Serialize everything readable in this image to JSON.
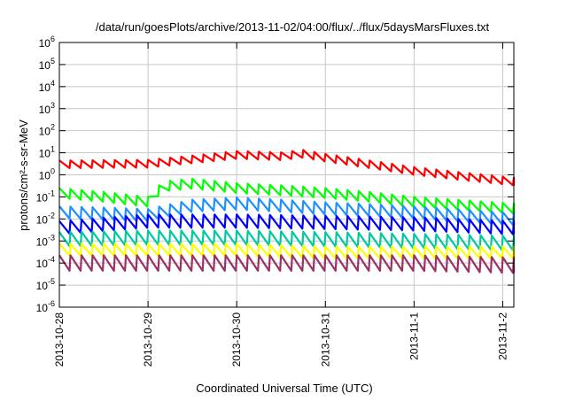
{
  "chart_data": {
    "type": "line",
    "title": "/data/run/goesPlots/archive/2013-11-02/04:00/flux/../flux/5daysMarsFluxes.txt",
    "xlabel": "Coordinated Universal Time (UTC)",
    "ylabel": "protons/cm²-s-sr-MeV",
    "y_scale": "log",
    "ylim_exp": [
      -6,
      6
    ],
    "y_tick_base": "10",
    "y_tick_exponents": [
      "-6",
      "-5",
      "-4",
      "-3",
      "-2",
      "-1",
      "0",
      "1",
      "2",
      "3",
      "4",
      "5",
      "6"
    ],
    "xlim": [
      "2013-10-28 00:00",
      "2013-11-02 03:00"
    ],
    "x_ticks": [
      "2013-10-28",
      "2013-10-29",
      "2013-10-30",
      "2013-10-31",
      "2013-11-1",
      "2013-11-2"
    ],
    "grid": true,
    "legend": "none",
    "sawtooth_period_hours": 3,
    "series": [
      {
        "color": "#ff0000",
        "x": [
          "2013-10-28 00:00",
          "2013-10-29 00:00",
          "2013-10-29 12:00",
          "2013-10-30 00:00",
          "2013-10-30 12:00",
          "2013-10-30 18:00",
          "2013-10-31 00:00",
          "2013-10-31 12:00",
          "2013-11-01 00:00",
          "2013-11-01 12:00",
          "2013-11-02 03:00"
        ],
        "y": [
          3,
          3.2,
          5,
          8,
          7,
          9,
          6,
          3,
          1.5,
          0.9,
          0.5
        ]
      },
      {
        "color": "#00ff00",
        "x": [
          "2013-10-28 00:00",
          "2013-10-28 12:00",
          "2013-10-29 00:00",
          "2013-10-29 04:00",
          "2013-10-29 12:00",
          "2013-10-30 00:00",
          "2013-10-30 12:00",
          "2013-10-31 00:00",
          "2013-10-31 12:00",
          "2013-11-01 00:00",
          "2013-11-02 03:00"
        ],
        "y": [
          0.15,
          0.1,
          0.06,
          0.3,
          0.4,
          0.25,
          0.2,
          0.15,
          0.1,
          0.06,
          0.03
        ]
      },
      {
        "color": "#1e90ff",
        "x": [
          "2013-10-28 00:00",
          "2013-10-29 00:00",
          "2013-10-29 12:00",
          "2013-10-30 00:00",
          "2013-10-30 12:00",
          "2013-10-31 00:00",
          "2013-10-31 12:00",
          "2013-11-01 00:00",
          "2013-11-02 03:00"
        ],
        "y": [
          0.02,
          0.015,
          0.04,
          0.05,
          0.04,
          0.03,
          0.025,
          0.02,
          0.01
        ]
      },
      {
        "color": "#0000ff",
        "x": [
          "2013-10-28 00:00",
          "2013-10-29 00:00",
          "2013-10-30 00:00",
          "2013-10-31 00:00",
          "2013-11-01 00:00",
          "2013-11-02 03:00"
        ],
        "y": [
          0.004,
          0.008,
          0.008,
          0.007,
          0.006,
          0.004
        ]
      },
      {
        "color": "#00c8a0",
        "x": [
          "2013-10-28 00:00",
          "2013-10-29 00:00",
          "2013-10-30 00:00",
          "2013-10-31 00:00",
          "2013-11-01 00:00",
          "2013-11-02 03:00"
        ],
        "y": [
          0.0012,
          0.0014,
          0.0014,
          0.0012,
          0.001,
          0.0008
        ]
      },
      {
        "color": "#ffff00",
        "x": [
          "2013-10-28 00:00",
          "2013-10-29 00:00",
          "2013-10-30 00:00",
          "2013-10-31 00:00",
          "2013-11-01 00:00",
          "2013-11-02 03:00"
        ],
        "y": [
          0.0004,
          0.0004,
          0.0004,
          0.0003,
          0.0003,
          0.0003
        ]
      },
      {
        "color": "#993366",
        "x": [
          "2013-10-28 00:00",
          "2013-10-29 00:00",
          "2013-10-30 00:00",
          "2013-10-31 00:00",
          "2013-11-01 00:00",
          "2013-11-02 03:00"
        ],
        "y": [
          0.0001,
          0.0001,
          0.0001,
          0.0001,
          0.0001,
          8e-05
        ]
      }
    ]
  }
}
